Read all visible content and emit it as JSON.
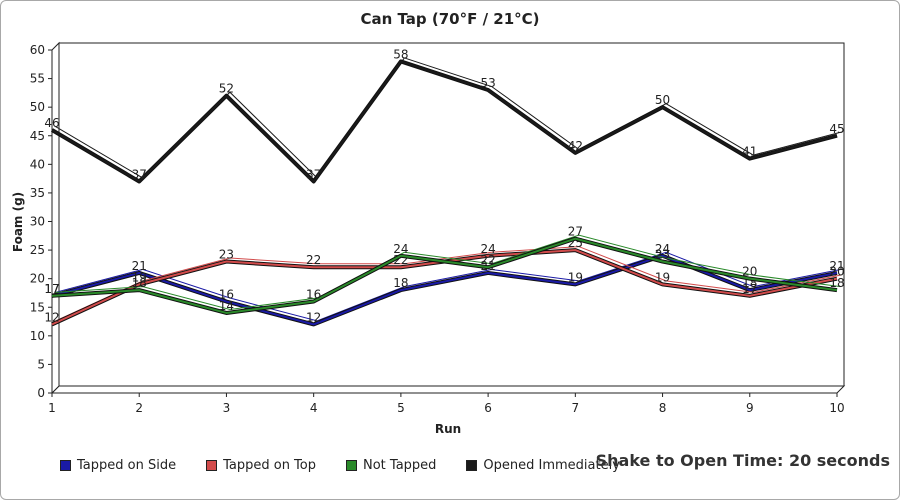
{
  "chart_data": {
    "type": "line",
    "title": "Can Tap (70°F / 21°C)",
    "xlabel": "Run",
    "ylabel": "Foam (g)",
    "x": [
      1,
      2,
      3,
      4,
      5,
      6,
      7,
      8,
      9,
      10
    ],
    "yticks": [
      0,
      5,
      10,
      15,
      20,
      25,
      30,
      35,
      40,
      45,
      50,
      55,
      60
    ],
    "ylim": [
      0,
      60
    ],
    "xlim": [
      1,
      10
    ],
    "grid": false,
    "legend_position": "bottom",
    "series": [
      {
        "name": "Tapped on Side",
        "color": "#1a1aa6",
        "values": [
          17,
          21,
          16,
          12,
          18,
          21,
          19,
          24,
          18,
          21
        ]
      },
      {
        "name": "Tapped on Top",
        "color": "#d24b4b",
        "values": [
          12,
          19,
          23,
          22,
          22,
          24,
          25,
          19,
          17,
          20
        ]
      },
      {
        "name": "Not Tapped",
        "color": "#2a8a2a",
        "values": [
          17,
          18,
          14,
          16,
          24,
          22,
          27,
          23,
          20,
          18
        ]
      },
      {
        "name": "Opened Immediately",
        "color": "#1a1a1a",
        "values": [
          46,
          37,
          52,
          37,
          58,
          53,
          42,
          50,
          41,
          45
        ]
      }
    ],
    "annotation": "Shake to Open Time: 20 seconds"
  }
}
